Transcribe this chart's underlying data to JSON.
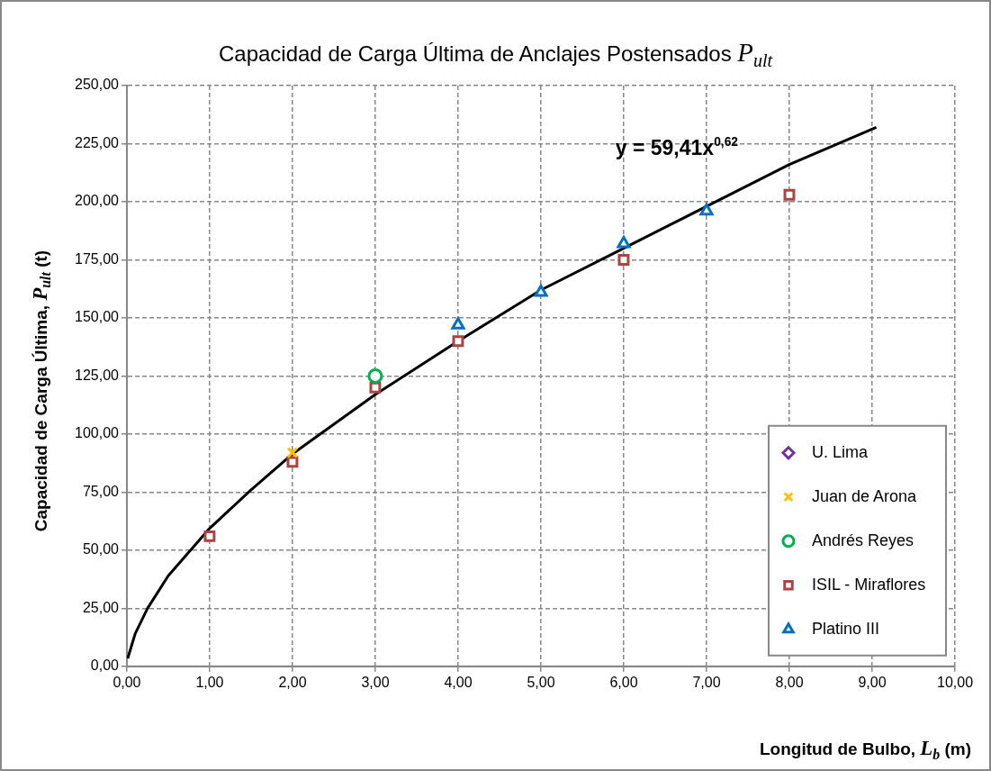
{
  "chart_data": {
    "type": "scatter",
    "title": "Capacidad de Carga Última de Anclajes Postensados P$_{ult}$",
    "xlabel": "Longitud de Bulbo, L$_{b}$  (m)",
    "ylabel": "Capacidad de Carga Última, P$_{ult}$  (t)",
    "xlim": [
      0,
      10
    ],
    "xticks": [
      {
        "value": 0,
        "label": "0,00"
      },
      {
        "value": 1,
        "label": "1,00"
      },
      {
        "value": 2,
        "label": "2,00"
      },
      {
        "value": 3,
        "label": "3,00"
      },
      {
        "value": 4,
        "label": "4,00"
      },
      {
        "value": 5,
        "label": "5,00"
      },
      {
        "value": 6,
        "label": "6,00"
      },
      {
        "value": 7,
        "label": "7,00"
      },
      {
        "value": 8,
        "label": "8,00"
      },
      {
        "value": 9,
        "label": "9,00"
      },
      {
        "value": 10,
        "label": "10,00"
      }
    ],
    "ylim": [
      0,
      250
    ],
    "yticks": [
      {
        "value": 0,
        "label": "0,00"
      },
      {
        "value": 25,
        "label": "25,00"
      },
      {
        "value": 50,
        "label": "50,00"
      },
      {
        "value": 75,
        "label": "75,00"
      },
      {
        "value": 100,
        "label": "100,00"
      },
      {
        "value": 125,
        "label": "125,00"
      },
      {
        "value": 150,
        "label": "150,00"
      },
      {
        "value": 175,
        "label": "175,00"
      },
      {
        "value": 200,
        "label": "200,00"
      },
      {
        "value": 225,
        "label": "225,00"
      },
      {
        "value": 250,
        "label": "250,00"
      }
    ],
    "grid": true,
    "legend": "bottom right",
    "series": [
      {
        "name": "U. Lima",
        "marker": "diamond",
        "color": "#7030a0"
      },
      {
        "name": "Juan de Arona",
        "marker": "cross",
        "color": "#ffc000",
        "x": [
          2
        ],
        "values": [
          92
        ]
      },
      {
        "name": "Andrés Reyes",
        "marker": "circle",
        "color": "#00b050",
        "x": [
          3
        ],
        "values": [
          125
        ]
      },
      {
        "name": "ISIL - Miraflores",
        "marker": "square",
        "color": "#a94442",
        "x": [
          1,
          2,
          3,
          4,
          6,
          8
        ],
        "values": [
          56,
          88,
          120,
          140,
          175,
          203
        ]
      },
      {
        "name": "Platino III",
        "marker": "triangle",
        "color": "#0070c0",
        "x": [
          4,
          5,
          6,
          7
        ],
        "values": [
          147,
          161,
          182,
          196
        ]
      },
      {
        "type": "line",
        "marker": "none",
        "color": "#000000",
        "x": [
          0.01,
          0.1,
          0.25,
          0.5,
          1,
          1.5,
          2,
          3,
          4,
          5,
          6,
          7,
          8,
          9.05
        ],
        "values": [
          3.4,
          14,
          25,
          39,
          59.4,
          76,
          91.4,
          117,
          140,
          162,
          180,
          198,
          216,
          232
        ]
      }
    ],
    "annotations": [
      "y = 59,41x$^{0,62}$"
    ]
  }
}
